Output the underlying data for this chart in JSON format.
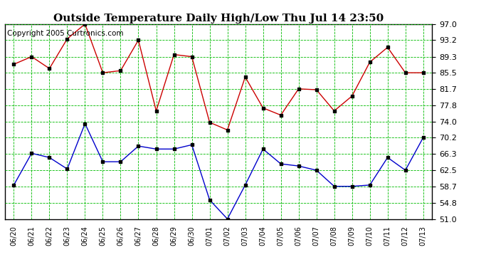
{
  "title": "Outside Temperature Daily High/Low Thu Jul 14 23:50",
  "copyright": "Copyright 2005 Curtronics.com",
  "x_labels": [
    "06/20",
    "06/21",
    "06/22",
    "06/23",
    "06/24",
    "06/25",
    "06/26",
    "06/27",
    "06/28",
    "06/29",
    "06/30",
    "07/01",
    "07/02",
    "07/03",
    "07/04",
    "07/05",
    "07/06",
    "07/07",
    "07/08",
    "07/09",
    "07/10",
    "07/11",
    "07/12",
    "07/13"
  ],
  "high_temps": [
    87.5,
    89.3,
    86.5,
    93.5,
    97.0,
    85.5,
    86.0,
    93.2,
    76.5,
    89.8,
    89.3,
    73.8,
    72.0,
    84.5,
    77.2,
    75.5,
    81.7,
    81.5,
    76.5,
    80.0,
    88.0,
    91.5,
    85.5,
    85.5
  ],
  "low_temps": [
    59.0,
    66.5,
    65.5,
    62.8,
    73.5,
    64.5,
    64.5,
    68.2,
    67.5,
    67.5,
    68.5,
    55.5,
    51.0,
    59.0,
    67.5,
    64.0,
    63.5,
    62.5,
    58.7,
    58.7,
    59.0,
    65.5,
    62.5,
    70.2
  ],
  "y_ticks": [
    51.0,
    54.8,
    58.7,
    62.5,
    66.3,
    70.2,
    74.0,
    77.8,
    81.7,
    85.5,
    89.3,
    93.2,
    97.0
  ],
  "ylim": [
    51.0,
    97.0
  ],
  "high_color": "#cc0000",
  "low_color": "#0000cc",
  "grid_color": "#00bb00",
  "bg_color": "#ffffff",
  "title_fontsize": 11,
  "copyright_fontsize": 7.5
}
